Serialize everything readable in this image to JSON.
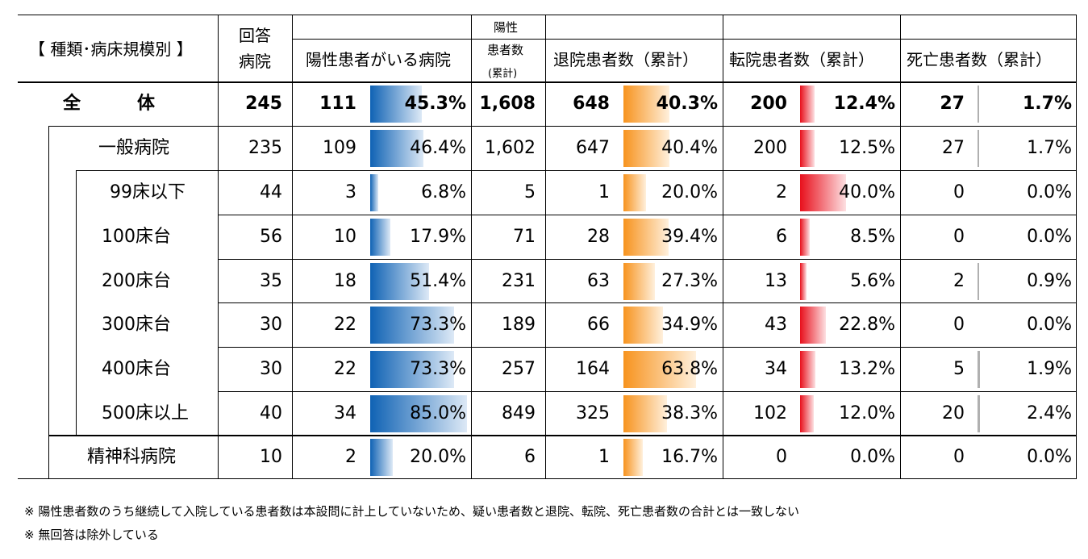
{
  "header": {
    "category": "【 種類･病床規模別 】",
    "responded_line1": "回答",
    "responded_line2": "病院",
    "positive_hospitals": "陽性患者がいる病院",
    "positive_patients_line1": "陽性",
    "positive_patients_line2": "患者数",
    "positive_patients_line3": "(累計)",
    "discharged": "退院患者数（累計）",
    "transferred": "転院患者数（累計）",
    "deaths": "死亡患者数（累計）"
  },
  "colors": {
    "blue_bar": "#1e6fbf",
    "orange_bar": "#f79a1e",
    "red_bar": "#e8141e",
    "gray_bar": "#a0a0a0"
  },
  "chart_data": {
    "type": "table",
    "columns": [
      "回答病院",
      "陽性患者がいる病院",
      "陽性患者数(累計)",
      "退院患者数（累計）",
      "転院患者数（累計）",
      "死亡患者数（累計）"
    ],
    "rows": [
      {
        "label": "全　　　体",
        "responded": "245",
        "pos_hosp": "111",
        "pos_hosp_pct": "45.3%",
        "pos_hosp_ratio": 0.453,
        "patients": "1,608",
        "discharged": "648",
        "discharged_pct": "40.3%",
        "discharged_ratio": 0.403,
        "transferred": "200",
        "transferred_pct": "12.4%",
        "transferred_ratio": 0.124,
        "deaths": "27",
        "deaths_pct": "1.7%",
        "deaths_ratio": 0.017
      },
      {
        "label": "一般病院",
        "responded": "235",
        "pos_hosp": "109",
        "pos_hosp_pct": "46.4%",
        "pos_hosp_ratio": 0.464,
        "patients": "1,602",
        "discharged": "647",
        "discharged_pct": "40.4%",
        "discharged_ratio": 0.404,
        "transferred": "200",
        "transferred_pct": "12.5%",
        "transferred_ratio": 0.125,
        "deaths": "27",
        "deaths_pct": "1.7%",
        "deaths_ratio": 0.017
      },
      {
        "label": "99床以下",
        "responded": "44",
        "pos_hosp": "3",
        "pos_hosp_pct": "6.8%",
        "pos_hosp_ratio": 0.068,
        "patients": "5",
        "discharged": "1",
        "discharged_pct": "20.0%",
        "discharged_ratio": 0.2,
        "transferred": "2",
        "transferred_pct": "40.0%",
        "transferred_ratio": 0.4,
        "deaths": "0",
        "deaths_pct": "0.0%",
        "deaths_ratio": 0
      },
      {
        "label": "100床台",
        "responded": "56",
        "pos_hosp": "10",
        "pos_hosp_pct": "17.9%",
        "pos_hosp_ratio": 0.179,
        "patients": "71",
        "discharged": "28",
        "discharged_pct": "39.4%",
        "discharged_ratio": 0.394,
        "transferred": "6",
        "transferred_pct": "8.5%",
        "transferred_ratio": 0.085,
        "deaths": "0",
        "deaths_pct": "0.0%",
        "deaths_ratio": 0
      },
      {
        "label": "200床台",
        "responded": "35",
        "pos_hosp": "18",
        "pos_hosp_pct": "51.4%",
        "pos_hosp_ratio": 0.514,
        "patients": "231",
        "discharged": "63",
        "discharged_pct": "27.3%",
        "discharged_ratio": 0.273,
        "transferred": "13",
        "transferred_pct": "5.6%",
        "transferred_ratio": 0.056,
        "deaths": "2",
        "deaths_pct": "0.9%",
        "deaths_ratio": 0.009
      },
      {
        "label": "300床台",
        "responded": "30",
        "pos_hosp": "22",
        "pos_hosp_pct": "73.3%",
        "pos_hosp_ratio": 0.733,
        "patients": "189",
        "discharged": "66",
        "discharged_pct": "34.9%",
        "discharged_ratio": 0.349,
        "transferred": "43",
        "transferred_pct": "22.8%",
        "transferred_ratio": 0.228,
        "deaths": "0",
        "deaths_pct": "0.0%",
        "deaths_ratio": 0
      },
      {
        "label": "400床台",
        "responded": "30",
        "pos_hosp": "22",
        "pos_hosp_pct": "73.3%",
        "pos_hosp_ratio": 0.733,
        "patients": "257",
        "discharged": "164",
        "discharged_pct": "63.8%",
        "discharged_ratio": 0.638,
        "transferred": "34",
        "transferred_pct": "13.2%",
        "transferred_ratio": 0.132,
        "deaths": "5",
        "deaths_pct": "1.9%",
        "deaths_ratio": 0.019
      },
      {
        "label": "500床以上",
        "responded": "40",
        "pos_hosp": "34",
        "pos_hosp_pct": "85.0%",
        "pos_hosp_ratio": 0.85,
        "patients": "849",
        "discharged": "325",
        "discharged_pct": "38.3%",
        "discharged_ratio": 0.383,
        "transferred": "102",
        "transferred_pct": "12.0%",
        "transferred_ratio": 0.12,
        "deaths": "20",
        "deaths_pct": "2.4%",
        "deaths_ratio": 0.024
      },
      {
        "label": "精神科病院",
        "responded": "10",
        "pos_hosp": "2",
        "pos_hosp_pct": "20.0%",
        "pos_hosp_ratio": 0.2,
        "patients": "6",
        "discharged": "1",
        "discharged_pct": "16.7%",
        "discharged_ratio": 0.167,
        "transferred": "0",
        "transferred_pct": "0.0%",
        "transferred_ratio": 0,
        "deaths": "0",
        "deaths_pct": "0.0%",
        "deaths_ratio": 0
      }
    ]
  },
  "notes": {
    "note1": "※ 陽性患者数のうち継続して入院している患者数は本設問に計上していないため、疑い患者数と退院、転院、死亡患者数の合計とは一致しない",
    "note2": "※ 無回答は除外している"
  }
}
